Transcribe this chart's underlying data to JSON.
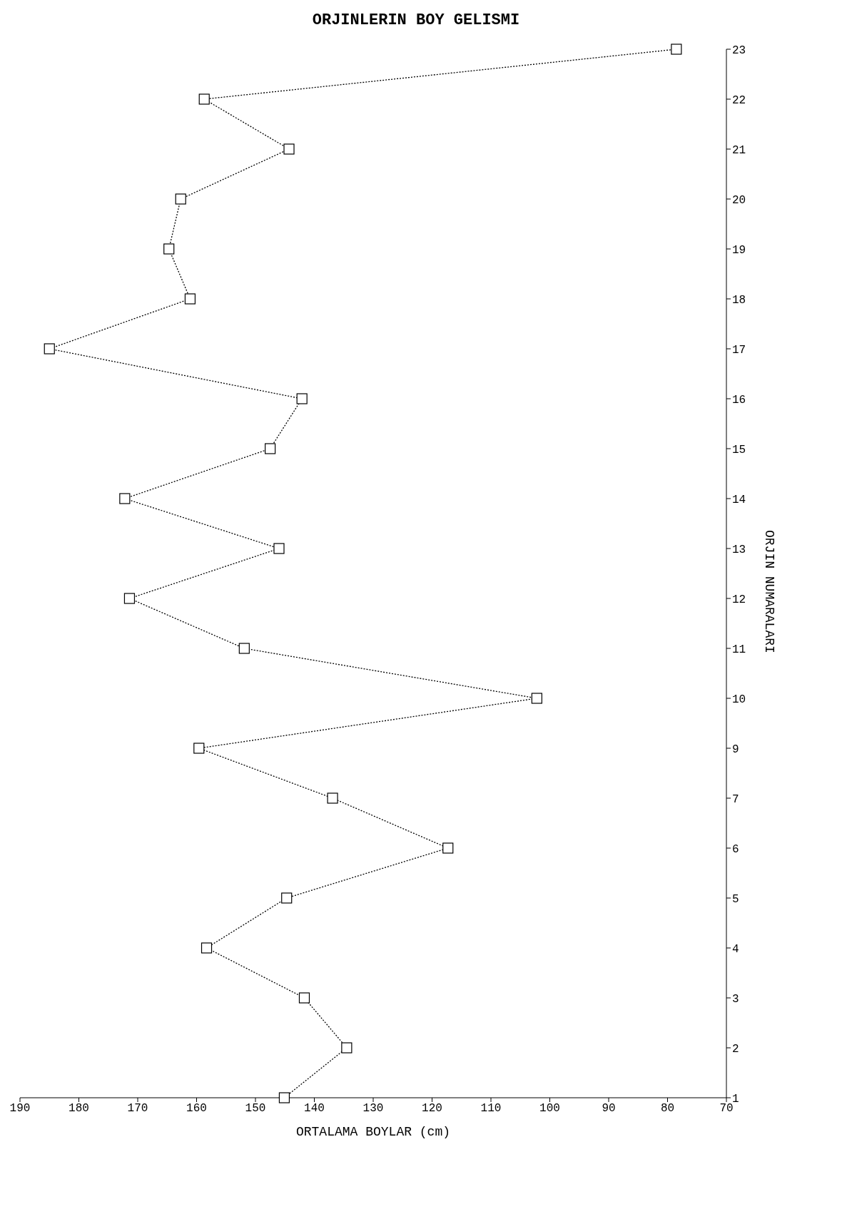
{
  "chart_data": {
    "type": "line",
    "title": "ORJINLERIN BOY GELISMI",
    "xlabel": "ORTALAMA BOYLAR (cm)",
    "ylabel": "ORJIN NUMARALARI",
    "orientation": "horizontal",
    "categories": [
      "23",
      "22",
      "21",
      "20",
      "19",
      "18",
      "17",
      "16",
      "15",
      "14",
      "13",
      "12",
      "11",
      "10",
      "9",
      "7",
      "6",
      "5",
      "4",
      "3",
      "2",
      "1"
    ],
    "series": [
      {
        "color": "#000000",
        "values": [
          78.5,
          158.7,
          144.3,
          162.7,
          164.7,
          161.1,
          185,
          142.1,
          147.5,
          172.2,
          146,
          171.4,
          151.9,
          102.2,
          159.6,
          136.9,
          117.3,
          144.7,
          158.3,
          141.7,
          134.5,
          145.1
        ]
      }
    ],
    "xlim": [
      190,
      70
    ],
    "xticks": [
      190,
      180,
      170,
      160,
      150,
      140,
      130,
      120,
      110,
      100,
      90,
      80,
      70
    ],
    "marker": "square",
    "line_style": "dotted",
    "grid": false,
    "legend": false
  }
}
